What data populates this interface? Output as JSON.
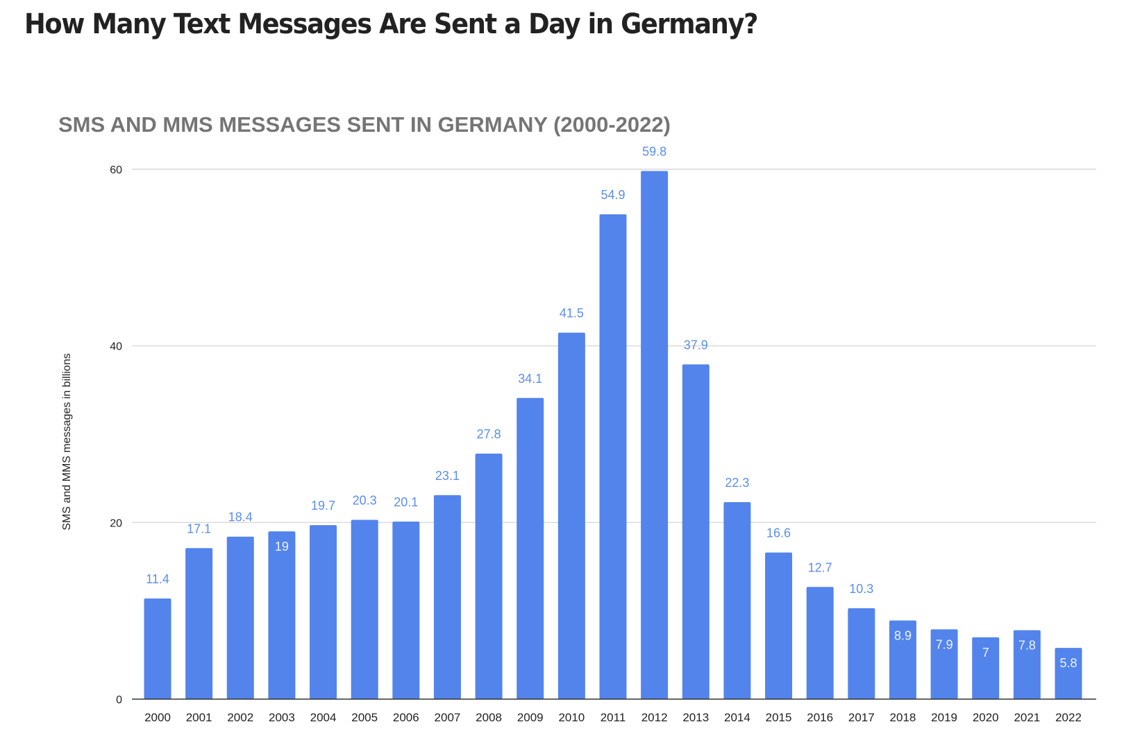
{
  "page": {
    "title": "How Many Text Messages Are Sent a Day in Germany?"
  },
  "chart_data": {
    "type": "bar",
    "title": "SMS AND MMS MESSAGES SENT IN GERMANY (2000-2022)",
    "xlabel": "",
    "ylabel": "SMS and MMS messages in billions",
    "ylim": [
      0,
      60
    ],
    "yticks": [
      0,
      20,
      40,
      60
    ],
    "grid": true,
    "categories": [
      "2000",
      "2001",
      "2002",
      "2003",
      "2004",
      "2005",
      "2006",
      "2007",
      "2008",
      "2009",
      "2010",
      "2011",
      "2012",
      "2013",
      "2014",
      "2015",
      "2016",
      "2017",
      "2018",
      "2019",
      "2020",
      "2021",
      "2022"
    ],
    "values": [
      11.4,
      17.1,
      18.4,
      19,
      19.7,
      20.3,
      20.1,
      23.1,
      27.8,
      34.1,
      41.5,
      54.9,
      59.8,
      37.9,
      22.3,
      16.6,
      12.7,
      10.3,
      8.9,
      7.9,
      7,
      7.8,
      5.8
    ],
    "labels_inside": [
      "2003",
      "2018",
      "2019",
      "2020",
      "2021",
      "2022"
    ],
    "bar_color": "#5384EC",
    "label_color": "#5B8DEF"
  }
}
